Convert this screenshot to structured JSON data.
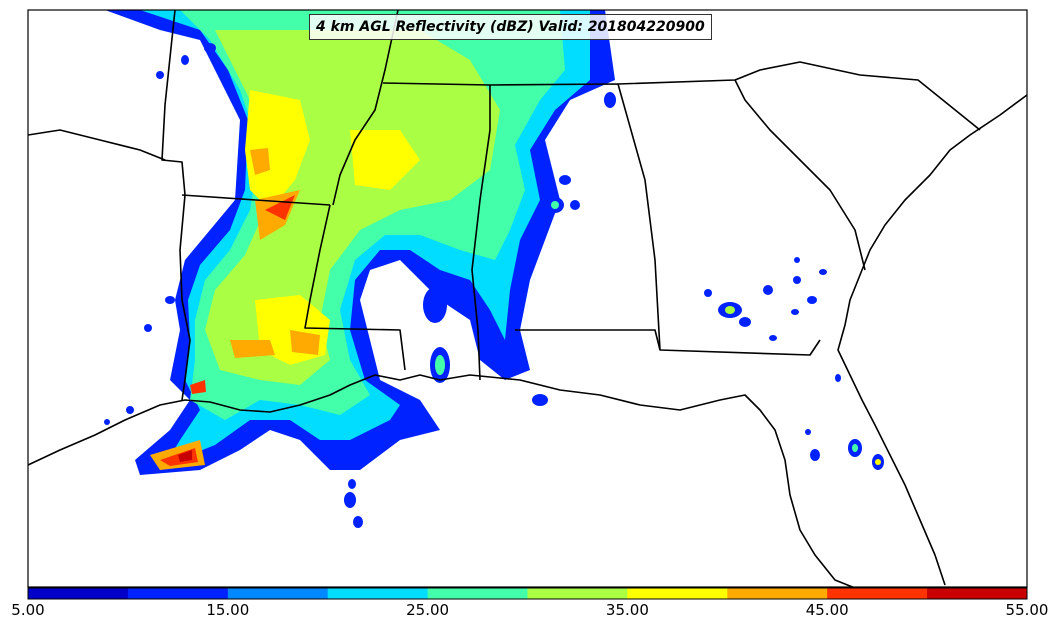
{
  "title": "4 km AGL Reflectivity (dBZ) Valid: 201804220900",
  "colorbar": {
    "colors": [
      "#0000c8",
      "#0022ff",
      "#0088ff",
      "#00ddff",
      "#44ffaa",
      "#aaff44",
      "#ffff00",
      "#ffaa00",
      "#ff3300",
      "#c80000"
    ],
    "tick_labels": [
      "5.00",
      "15.00",
      "25.00",
      "35.00",
      "45.00",
      "55.00"
    ],
    "tick_values": [
      5,
      15,
      25,
      35,
      45,
      55
    ],
    "range": [
      5,
      55
    ]
  }
}
